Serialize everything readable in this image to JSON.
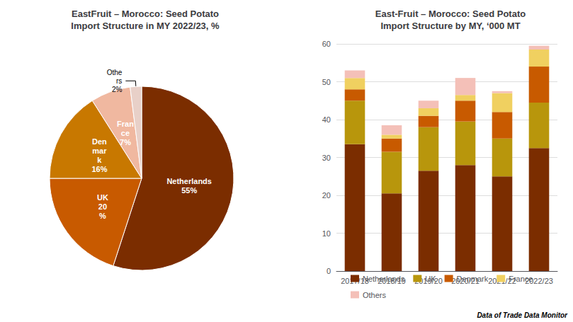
{
  "chart_data": [
    {
      "type": "pie",
      "title": "EastFruit – Morocco: Seed Potato\nImport Structure in MY 2022/23, %",
      "categories": [
        "Netherlands",
        "UK",
        "Denmark",
        "France",
        "Others"
      ],
      "values": [
        55,
        20,
        16,
        7,
        2
      ],
      "value_labels": [
        "Netherlands\n55%",
        "UK\n20\n%",
        "Den\nmar\nk\n16%",
        "Fran\nce\n7%",
        "Othe\nrs\n2%"
      ],
      "colors": [
        "#7B2D00",
        "#C85A00",
        "#C87800",
        "#F0B8A0",
        "#E8D0C8"
      ],
      "data_labels": true
    },
    {
      "type": "bar",
      "title": "East-Fruit – Morocco: Seed Potato\nImport Structure by MY, ‘000 MT",
      "categories": [
        "2017/18",
        "2018/19",
        "2019/20",
        "2020/21",
        "2021/22",
        "2022/23"
      ],
      "series": [
        {
          "name": "Netherlands",
          "color": "#7B2D00",
          "values": [
            33.5,
            20.5,
            26.5,
            28.0,
            25.0,
            32.5
          ]
        },
        {
          "name": "UK",
          "color": "#B8960C",
          "values": [
            11.5,
            11.0,
            11.5,
            11.5,
            10.0,
            12.0
          ]
        },
        {
          "name": "Denmark",
          "color": "#C85A00",
          "values": [
            3.0,
            3.5,
            3.0,
            5.5,
            7.0,
            9.5
          ]
        },
        {
          "name": "France",
          "color": "#F0D060",
          "values": [
            3.0,
            1.0,
            2.0,
            1.5,
            5.0,
            4.5
          ]
        },
        {
          "name": "Others",
          "color": "#F4C0B8",
          "values": [
            2.0,
            2.5,
            2.0,
            4.5,
            0.5,
            1.0
          ]
        }
      ],
      "stacked": true,
      "ylim": [
        0,
        60
      ],
      "yticks": [
        0,
        10,
        20,
        30,
        40,
        50,
        60
      ],
      "grid": true,
      "legend": "bottom",
      "annotations": [
        "Data of Trade Data Monitor"
      ]
    }
  ]
}
